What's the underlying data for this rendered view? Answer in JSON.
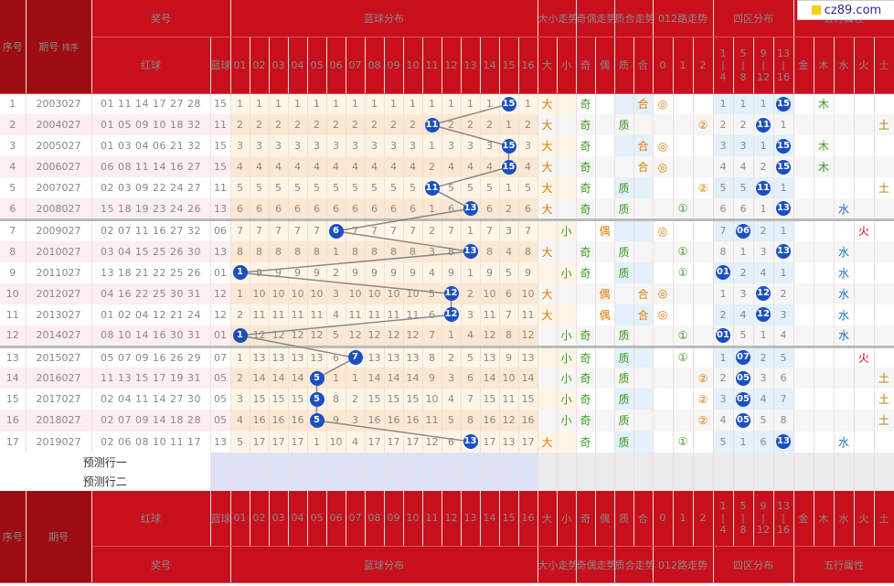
{
  "logo": {
    "text": "cz89.com"
  },
  "colors": {
    "header": "#c8101d",
    "ball": "#1a4fc4",
    "red_text": "#c8101d"
  },
  "header": {
    "seq": "序号",
    "period": "期号",
    "sort": "排序",
    "prize": "奖号",
    "red": "红球",
    "blue": "蓝球",
    "blue_dist": "蓝球分布",
    "dx": "大小走势",
    "jo": "奇偶走势",
    "zh": "质合走势",
    "lu": "012路走势",
    "sq": "四区分布",
    "wx": "五行属性",
    "blue_cols": [
      "01",
      "02",
      "03",
      "04",
      "05",
      "06",
      "07",
      "08",
      "09",
      "10",
      "11",
      "12",
      "13",
      "14",
      "15",
      "16"
    ],
    "dx_cols": [
      "大",
      "小"
    ],
    "jo_cols": [
      "奇",
      "偶"
    ],
    "zh_cols": [
      "质",
      "合"
    ],
    "lu_cols": [
      "0",
      "1",
      "2"
    ],
    "sq_cols": [
      [
        "1",
        "|",
        "4"
      ],
      [
        "5",
        "|",
        "8"
      ],
      [
        "9",
        "|",
        "12"
      ],
      [
        "13",
        "|",
        "16"
      ]
    ],
    "wx_cols": [
      "金",
      "木",
      "水",
      "火",
      "土"
    ]
  },
  "chart_data": {
    "type": "table",
    "rows": [
      {
        "seq": "1",
        "period": "2003027",
        "red": "01 11 14 17 27 28",
        "blue": "15"
      },
      {
        "seq": "2",
        "period": "2004027",
        "red": "01 05 09 10 18 32",
        "blue": "11"
      },
      {
        "seq": "3",
        "period": "2005027",
        "red": "01 03 04 06 21 32",
        "blue": "15"
      },
      {
        "seq": "4",
        "period": "2006027",
        "red": "06 08 11 14 16 27",
        "blue": "15"
      },
      {
        "seq": "5",
        "period": "2007027",
        "red": "02 03 09 22 24 27",
        "blue": "11"
      },
      {
        "seq": "6",
        "period": "2008027",
        "red": "15 18 19 23 24 26",
        "blue": "13"
      },
      {
        "seq": "7",
        "period": "2009027",
        "red": "02 07 11 16 27 32",
        "blue": "06"
      },
      {
        "seq": "8",
        "period": "2010027",
        "red": "03 04 15 25 26 30",
        "blue": "13"
      },
      {
        "seq": "9",
        "period": "2011027",
        "red": "13 18 21 22 25 26",
        "blue": "01"
      },
      {
        "seq": "10",
        "period": "2012027",
        "red": "04 16 22 25 30 31",
        "blue": "12"
      },
      {
        "seq": "11",
        "period": "2013027",
        "red": "01 02 04 12 21 24",
        "blue": "12"
      },
      {
        "seq": "12",
        "period": "2014027",
        "red": "08 10 14 16 30 31",
        "blue": "01"
      },
      {
        "seq": "13",
        "period": "2015027",
        "red": "05 07 09 16 26 29",
        "blue": "07"
      },
      {
        "seq": "14",
        "period": "2016027",
        "red": "11 13 15 17 19 31",
        "blue": "05"
      },
      {
        "seq": "15",
        "period": "2017027",
        "red": "02 04 11 14 27 30",
        "blue": "05"
      },
      {
        "seq": "16",
        "period": "2018027",
        "red": "02 07 09 14 18 28",
        "blue": "05"
      },
      {
        "seq": "17",
        "period": "2019027",
        "red": "02 06 08 10 11 17",
        "blue": "13"
      }
    ],
    "omission": [
      [
        1,
        1,
        1,
        1,
        1,
        1,
        1,
        1,
        1,
        1,
        1,
        1,
        1,
        1,
        15,
        1
      ],
      [
        2,
        2,
        2,
        2,
        2,
        2,
        2,
        2,
        2,
        2,
        11,
        2,
        2,
        2,
        1,
        2
      ],
      [
        3,
        3,
        3,
        3,
        3,
        3,
        3,
        3,
        3,
        3,
        1,
        3,
        3,
        3,
        15,
        3
      ],
      [
        4,
        4,
        4,
        4,
        4,
        4,
        4,
        4,
        4,
        4,
        2,
        4,
        4,
        4,
        15,
        4
      ],
      [
        5,
        5,
        5,
        5,
        5,
        5,
        5,
        5,
        5,
        5,
        11,
        5,
        5,
        5,
        1,
        5
      ],
      [
        6,
        6,
        6,
        6,
        6,
        6,
        6,
        6,
        6,
        6,
        1,
        6,
        13,
        6,
        2,
        6
      ],
      [
        7,
        7,
        7,
        7,
        7,
        6,
        7,
        7,
        7,
        7,
        2,
        7,
        1,
        7,
        3,
        7
      ],
      [
        8,
        8,
        8,
        8,
        8,
        1,
        8,
        8,
        8,
        8,
        3,
        8,
        13,
        8,
        4,
        8
      ],
      [
        1,
        9,
        9,
        9,
        9,
        2,
        9,
        9,
        9,
        9,
        4,
        9,
        1,
        9,
        5,
        9
      ],
      [
        1,
        10,
        10,
        10,
        10,
        3,
        10,
        10,
        10,
        10,
        5,
        12,
        2,
        10,
        6,
        10
      ],
      [
        2,
        11,
        11,
        11,
        11,
        4,
        11,
        11,
        11,
        11,
        6,
        12,
        3,
        11,
        7,
        11
      ],
      [
        1,
        12,
        12,
        12,
        12,
        5,
        12,
        12,
        12,
        12,
        7,
        1,
        4,
        12,
        8,
        12
      ],
      [
        1,
        13,
        13,
        13,
        13,
        6,
        7,
        13,
        13,
        13,
        8,
        2,
        5,
        13,
        9,
        13
      ],
      [
        2,
        14,
        14,
        14,
        5,
        1,
        1,
        14,
        14,
        14,
        9,
        3,
        6,
        14,
        10,
        14
      ],
      [
        3,
        15,
        15,
        15,
        5,
        8,
        2,
        15,
        15,
        15,
        10,
        4,
        7,
        15,
        11,
        15
      ],
      [
        4,
        16,
        16,
        16,
        5,
        9,
        3,
        16,
        16,
        16,
        11,
        5,
        8,
        16,
        12,
        16
      ],
      [
        5,
        17,
        17,
        17,
        1,
        10,
        4,
        17,
        17,
        17,
        12,
        6,
        13,
        17,
        13,
        17
      ]
    ],
    "dx": [
      "大",
      "大",
      "大",
      "大",
      "大",
      "大",
      "小",
      "大",
      "小",
      "大",
      "大",
      "小",
      "小",
      "小",
      "小",
      "小",
      "大"
    ],
    "jo": [
      "奇",
      "奇",
      "奇",
      "奇",
      "奇",
      "奇",
      "偶",
      "奇",
      "奇",
      "偶",
      "偶",
      "奇",
      "奇",
      "奇",
      "奇",
      "奇",
      "奇"
    ],
    "zh": [
      "合",
      "质",
      "合",
      "合",
      "质",
      "质",
      "",
      "质",
      "质",
      "合",
      "合",
      "质",
      "质",
      "质",
      "质",
      "质",
      "质"
    ],
    "lu": [
      "0",
      "2",
      "0",
      "0",
      "2",
      "1",
      "0",
      "1",
      "1",
      "0",
      "0",
      "1",
      "1",
      "2",
      "2",
      "2",
      "1"
    ],
    "sq": [
      "4",
      "3",
      "4",
      "4",
      "3",
      "4",
      "2",
      "4",
      "1",
      "3",
      "3",
      "1",
      "2",
      "2",
      "2",
      "2",
      "4"
    ],
    "wx": [
      "木",
      "土",
      "木",
      "木",
      "土",
      "水",
      "火",
      "水",
      "水",
      "水",
      "水",
      "水",
      "火",
      "土",
      "土",
      "土",
      "水"
    ]
  },
  "sq_vals": [
    [
      "1",
      "1",
      "1",
      "15"
    ],
    [
      "2",
      "2",
      "11",
      "1"
    ],
    [
      "3",
      "3",
      "1",
      "15"
    ],
    [
      "4",
      "4",
      "2",
      "15"
    ],
    [
      "5",
      "5",
      "11",
      "1"
    ],
    [
      "6",
      "6",
      "1",
      "13"
    ],
    [
      "7",
      "06",
      "2",
      "1"
    ],
    [
      "8",
      "1",
      "3",
      "13"
    ],
    [
      "01",
      "2",
      "4",
      "1"
    ],
    [
      "1",
      "3",
      "12",
      "2"
    ],
    [
      "2",
      "4",
      "12",
      "3"
    ],
    [
      "01",
      "5",
      "1",
      "4"
    ],
    [
      "1",
      "07",
      "2",
      "5"
    ],
    [
      "2",
      "05",
      "3",
      "6"
    ],
    [
      "3",
      "05",
      "4",
      "7"
    ],
    [
      "4",
      "05",
      "5",
      "8"
    ],
    [
      "5",
      "1",
      "6",
      "13"
    ]
  ],
  "pred": {
    "row1": "预测行一",
    "row2": "预测行二"
  },
  "footer": {
    "seq": "序号",
    "period": "期号",
    "red": "红球",
    "blue": "蓝球",
    "prize": "奖号",
    "blue_dist": "蓝球分布",
    "dx": "大小走势",
    "jo": "奇偶走势",
    "zh": "质合走势",
    "lu": "012路走势",
    "sq": "四区分布",
    "wx": "五行属性"
  }
}
